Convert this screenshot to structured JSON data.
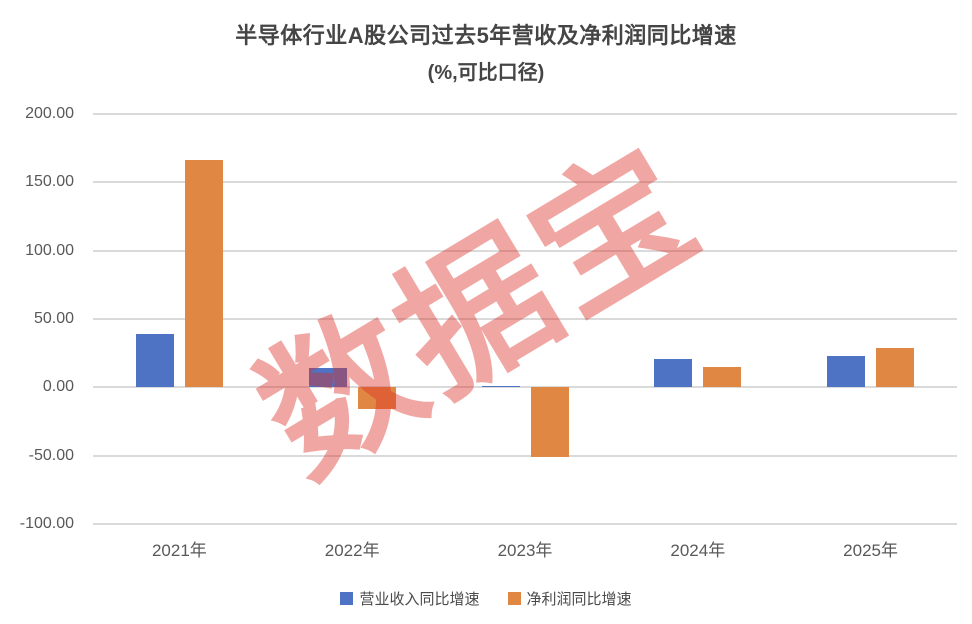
{
  "title": "半导体行业A股公司过去5年营收及净利润同比增速",
  "subtitle": "(%,可比口径)",
  "watermark": "数据宝",
  "colors": {
    "revenue_bar": "#4E73C5",
    "profit_bar": "#E08843",
    "watermark": "rgba(219,46,36,0.42)",
    "gridline": "#DADADA",
    "axis_text": "#595959",
    "title_text": "#454545"
  },
  "chart_data": {
    "type": "bar",
    "title": "半导体行业A股公司过去5年营收及净利润同比增速",
    "subtitle": "(%,可比口径)",
    "categories": [
      "2021年",
      "2022年",
      "2023年",
      "2024年",
      "2025年"
    ],
    "series": [
      {
        "name": "营业收入同比增速",
        "color": "#4E73C5",
        "values": [
          39,
          14,
          1,
          21,
          23
        ]
      },
      {
        "name": "净利润同比增速",
        "color": "#E08843",
        "values": [
          166,
          -16,
          -51,
          15,
          29
        ]
      }
    ],
    "ylim": [
      -100,
      200
    ],
    "yticks": [
      200,
      150,
      100,
      50,
      0,
      -50,
      -100
    ],
    "ytick_labels": [
      "200.00",
      "150.00",
      "100.00",
      "50.00",
      "0.00",
      "-50.00",
      "-100.00"
    ],
    "xlabel": "",
    "ylabel": "",
    "grid": true,
    "legend_position": "bottom"
  }
}
